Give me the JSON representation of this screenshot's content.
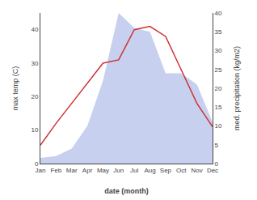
{
  "chart_data": {
    "type": "line",
    "categories": [
      "Jan",
      "Feb",
      "Mar",
      "Apr",
      "May",
      "Jun",
      "Jul",
      "Aug",
      "Sep",
      "Oct",
      "Nov",
      "Dec"
    ],
    "series": [
      {
        "type": "area",
        "color": "#c8d0f0",
        "axis": "y2",
        "values": [
          1.5,
          2,
          4,
          10,
          22,
          40,
          36,
          35,
          24,
          24,
          21,
          11
        ]
      },
      {
        "type": "line",
        "color": "#cc3333",
        "values": [
          5.5,
          12,
          18,
          24,
          30,
          31,
          40,
          41,
          38,
          28,
          18,
          11
        ]
      }
    ],
    "xlabel": "date (month)",
    "ylabel": "max temp (C)",
    "y2label": "med. precipitation (kg/m2)",
    "ylim": [
      0,
      45
    ],
    "yticks": [
      0,
      10,
      20,
      30,
      40
    ],
    "y2lim": [
      0,
      40
    ],
    "y2ticks": [
      0,
      5,
      10,
      15,
      20,
      25,
      30,
      35,
      40
    ],
    "grid": false
  }
}
